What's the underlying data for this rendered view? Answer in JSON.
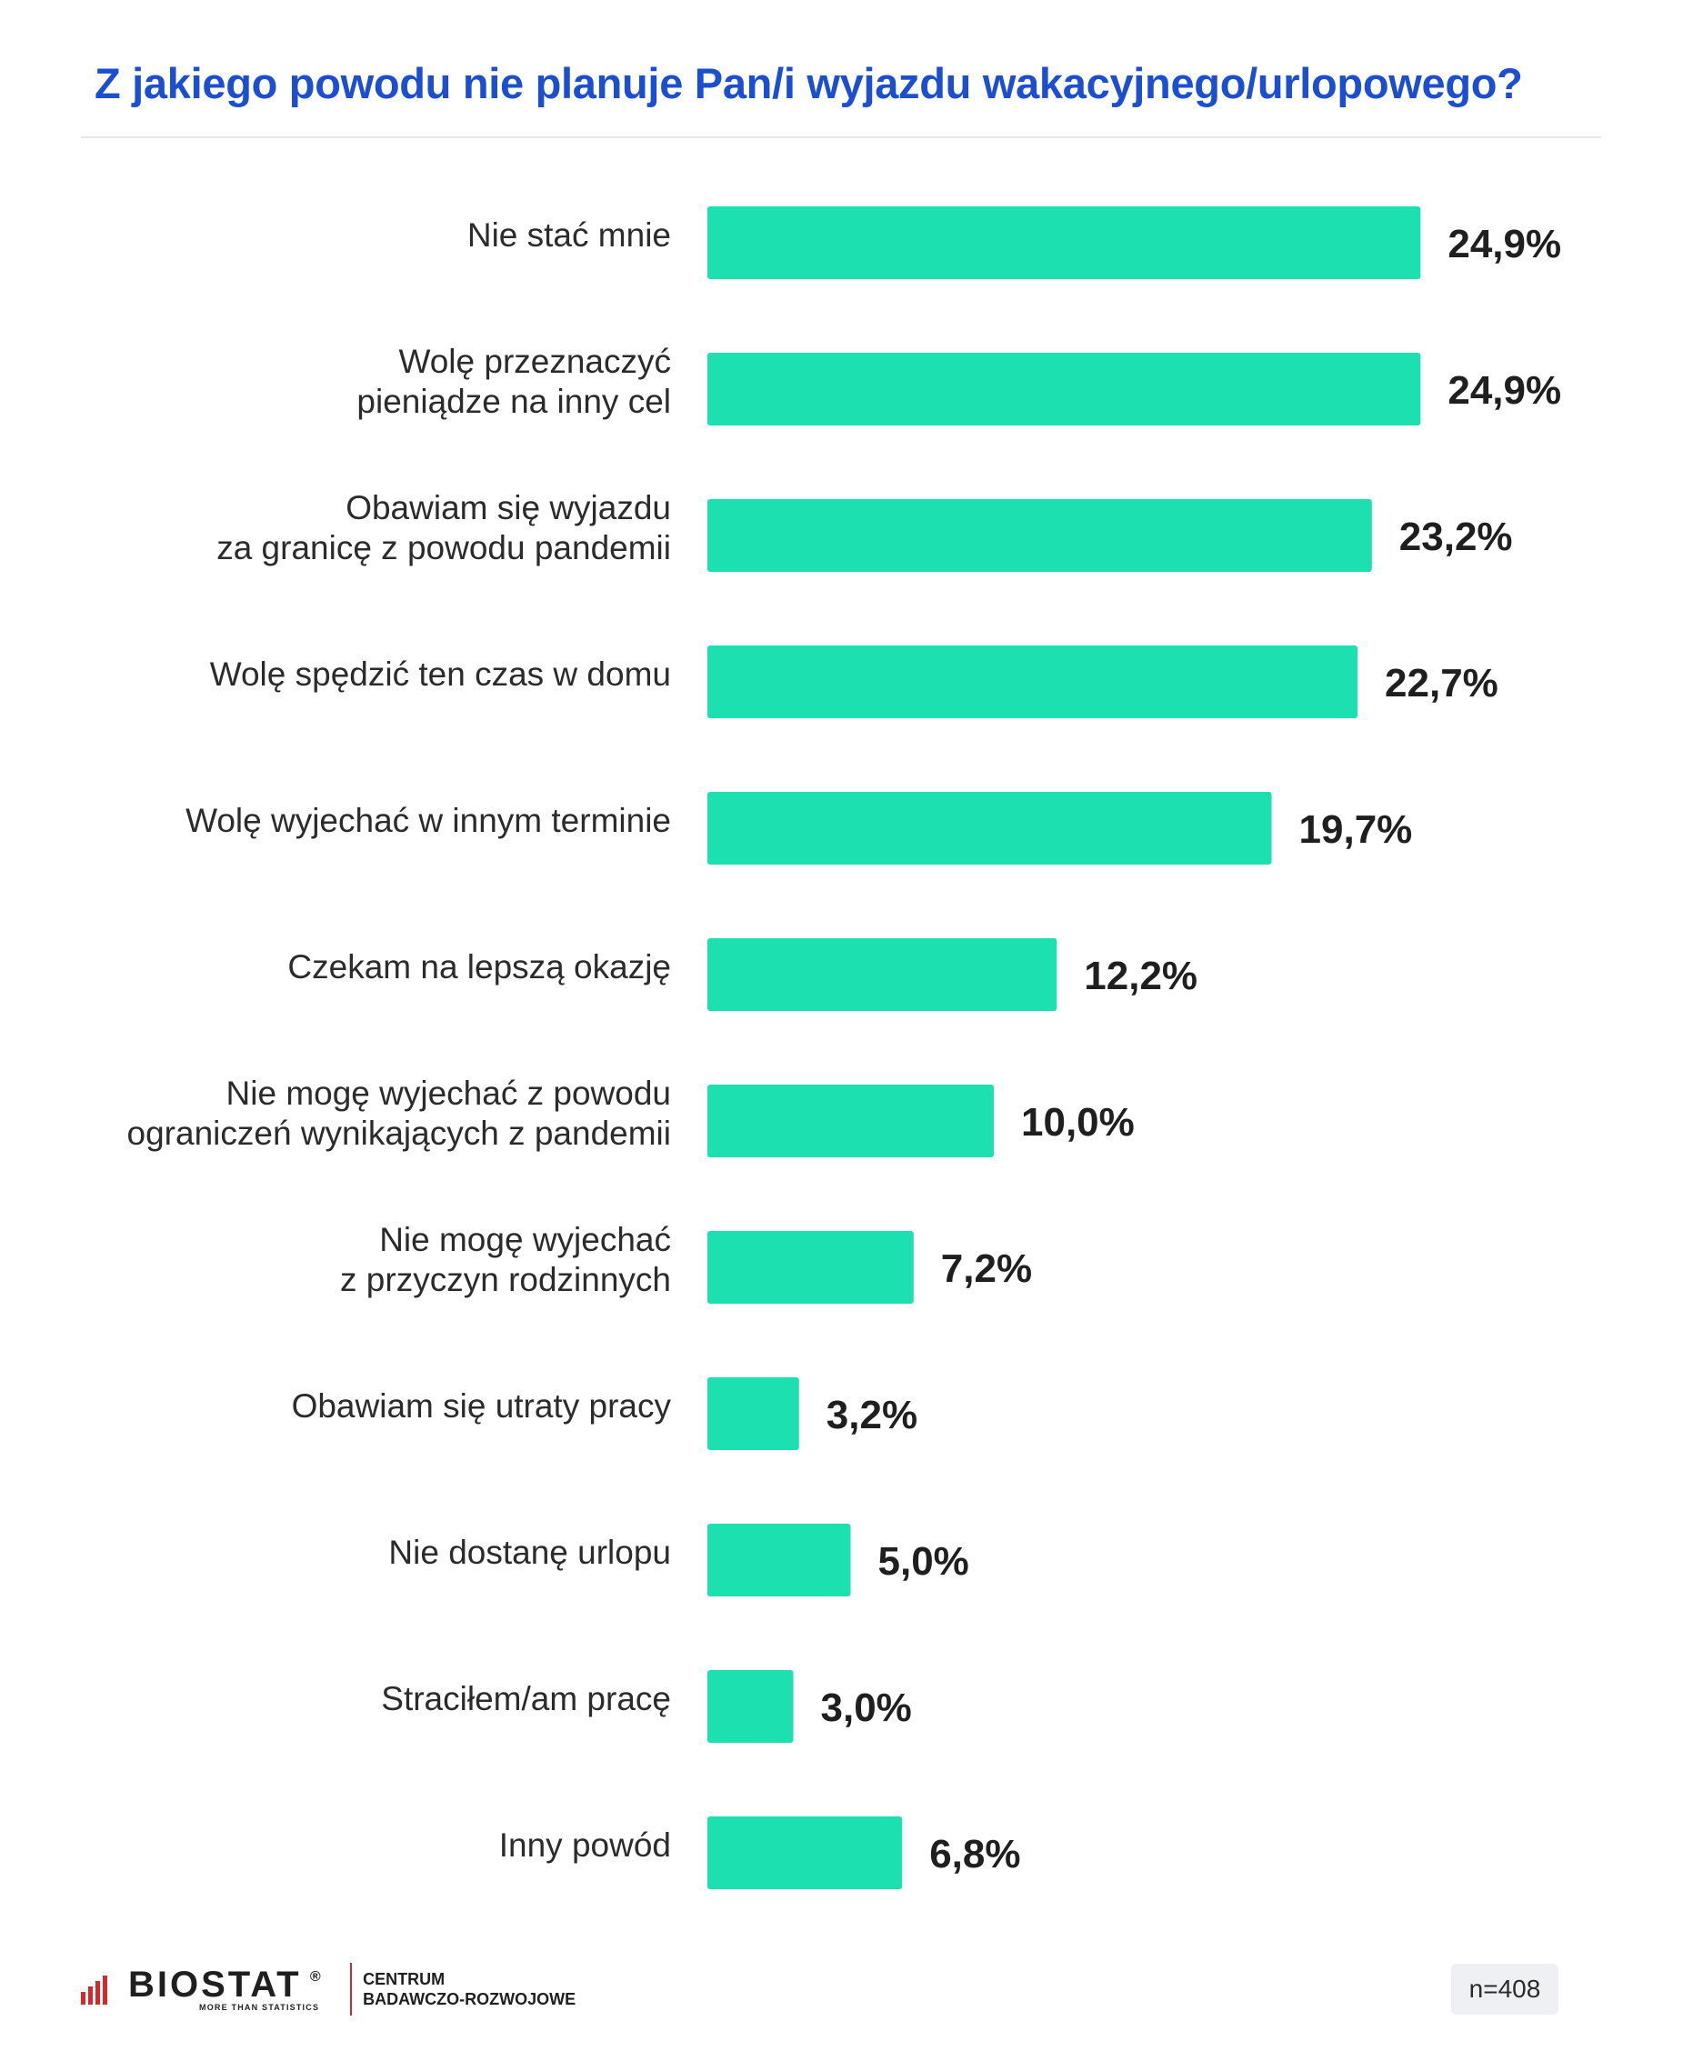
{
  "chart_data": {
    "type": "bar",
    "orientation": "horizontal",
    "title": "Z jakiego powodu nie planuje Pan/i wyjazdu wakacyjnego/urlopowego?",
    "categories": [
      [
        "Nie stać mnie"
      ],
      [
        "Wolę przeznaczyć",
        "pieniądze na inny cel"
      ],
      [
        "Obawiam się wyjazdu",
        "za granicę z powodu pandemii"
      ],
      [
        "Wolę spędzić ten czas w domu"
      ],
      [
        "Wolę wyjechać w innym terminie"
      ],
      [
        "Czekam na lepszą okazję"
      ],
      [
        "Nie mogę wyjechać z powodu",
        "ograniczeń wynikających z pandemii"
      ],
      [
        "Nie mogę wyjechać",
        "z przyczyn rodzinnych"
      ],
      [
        "Obawiam się utraty pracy"
      ],
      [
        "Nie dostanę urlopu"
      ],
      [
        "Straciłem/am pracę"
      ],
      [
        "Inny powód"
      ]
    ],
    "values": [
      24.9,
      24.9,
      23.2,
      22.7,
      19.7,
      12.2,
      10.0,
      7.2,
      3.2,
      5.0,
      3.0,
      6.8
    ],
    "value_labels": [
      "24,9%",
      "24,9%",
      "23,2%",
      "22,7%",
      "19,7%",
      "12,2%",
      "10,0%",
      "7,2%",
      "3,2%",
      "5,0%",
      "3,0%",
      "6,8%"
    ],
    "unit": "%",
    "bar_color": "#1de0b0",
    "grid": false,
    "legend": "none"
  },
  "footer": {
    "logo_text": "BIOSTAT",
    "logo_registered": "®",
    "logo_tagline": "MORE THAN STATISTICS",
    "logo_sub_line1": "CENTRUM",
    "logo_sub_line2": "BADAWCZO-ROZWOJOWE",
    "sample_size": "n=408"
  },
  "colors": {
    "title": "#1c4fd0",
    "bar": "#1de0b0",
    "logo_accent": "#d22a2a"
  }
}
